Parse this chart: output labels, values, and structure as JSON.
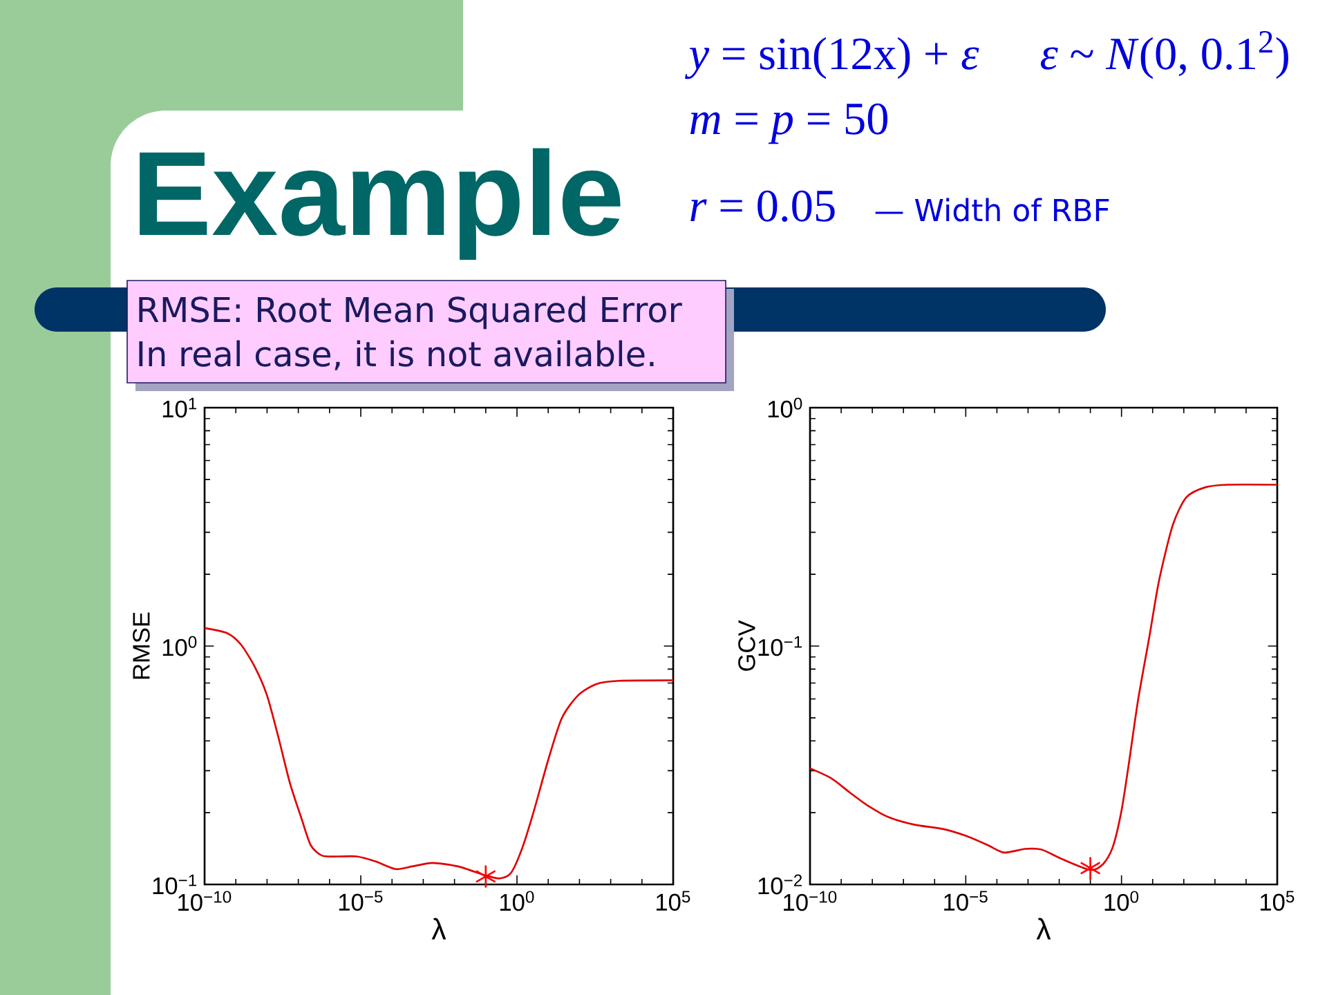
{
  "chart_data": [
    {
      "type": "other",
      "title": "Example",
      "annotations": [
        "*y* = sin(12x) + *ε*",
        "*ε* ~ *N*(0, 0.1$^{2}$)",
        "*m* = *p* = 50",
        "*r* = 0.05",
        "— Width of RBF",
        "RMSE: Root Mean Squared Error",
        "In real case, it is not available."
      ]
    },
    {
      "type": "line",
      "xlabel": "λ",
      "ylabel": "RMSE",
      "log": "xy",
      "xlim": [
        1e-10,
        100000
      ],
      "ylim": [
        0.1,
        10
      ],
      "xticks": [
        {
          "value": 1e-10,
          "label": "10$^{−10}$"
        },
        {
          "value": 1e-05,
          "label": "10$^{−5}$"
        },
        {
          "value": 1,
          "label": "10$^{0}$"
        },
        {
          "value": 100000,
          "label": "10$^{5}$"
        }
      ],
      "yticks": [
        {
          "value": 0.1,
          "label": "10$^{−1}$"
        },
        {
          "value": 1,
          "label": "10$^{0}$"
        },
        {
          "value": 10,
          "label": "10$^{1}$"
        }
      ],
      "series": [
        {
          "color": "#e00000",
          "x": [
            1e-10,
            5.5e-10,
            1.5e-09,
            4.2e-09,
            1e-08,
            2.3e-08,
            5.4e-08,
            1.3e-07,
            2.5e-07,
            5.8e-07,
            1.9e-06,
            7.4e-06,
            2.9e-05,
            0.00013,
            0.00044,
            0.002,
            0.013,
            0.1,
            0.28,
            0.65,
            1.5,
            3.5,
            10,
            27,
            89,
            350,
            1900,
            100000
          ],
          "values": [
            1.19,
            1.13,
            1.01,
            0.81,
            0.62,
            0.415,
            0.266,
            0.187,
            0.146,
            0.132,
            0.131,
            0.131,
            0.125,
            0.116,
            0.119,
            0.123,
            0.119,
            0.109,
            0.106,
            0.112,
            0.143,
            0.204,
            0.333,
            0.497,
            0.62,
            0.693,
            0.715,
            0.718
          ]
        },
        {
          "type": "scatter",
          "marker": "cross",
          "color": "#ff0000",
          "x": [
            0.1
          ],
          "values": [
            0.108
          ]
        }
      ]
    },
    {
      "type": "line",
      "xlabel": "λ",
      "ylabel": "GCV",
      "log": "xy",
      "xlim": [
        1e-10,
        100000
      ],
      "ylim": [
        0.01,
        1
      ],
      "xticks": [
        {
          "value": 1e-10,
          "label": "10$^{−10}$"
        },
        {
          "value": 1e-05,
          "label": "10$^{−5}$"
        },
        {
          "value": 1,
          "label": "10$^{0}$"
        },
        {
          "value": 100000,
          "label": "10$^{5}$"
        }
      ],
      "yticks": [
        {
          "value": 0.01,
          "label": "10$^{−2}$"
        },
        {
          "value": 0.1,
          "label": "10$^{−1}$"
        },
        {
          "value": 1,
          "label": "10$^{0}$"
        }
      ],
      "series": [
        {
          "color": "#e00000",
          "x": [
            1e-10,
            5e-10,
            1.9e-09,
            7.6e-09,
            3.5e-08,
            2.3e-07,
            1.8e-06,
            1e-05,
            5.2e-05,
            0.00017,
            0.00081,
            0.0027,
            0.012,
            0.1,
            0.26,
            0.52,
            1,
            1.7,
            3.4,
            7.9,
            16,
            44,
            120,
            480,
            2600,
            100000
          ],
          "values": [
            0.0307,
            0.0278,
            0.0243,
            0.0213,
            0.0191,
            0.0178,
            0.0171,
            0.016,
            0.0146,
            0.0136,
            0.0141,
            0.014,
            0.0128,
            0.0115,
            0.0122,
            0.0143,
            0.0204,
            0.0318,
            0.0593,
            0.11,
            0.188,
            0.321,
            0.42,
            0.463,
            0.475,
            0.475
          ]
        },
        {
          "type": "scatter",
          "marker": "cross",
          "color": "#ff0000",
          "x": [
            0.1
          ],
          "values": [
            0.0117
          ]
        }
      ]
    }
  ]
}
